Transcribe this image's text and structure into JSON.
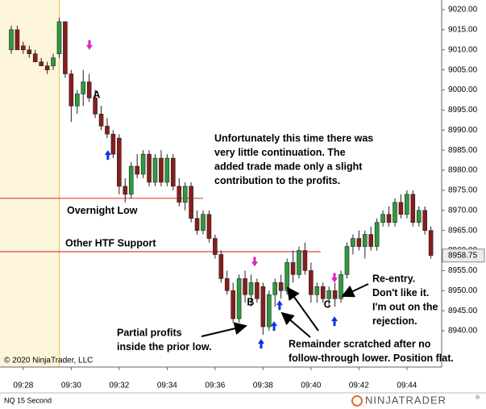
{
  "chart_data": {
    "type": "candlestick",
    "instrument": "NQ 15 Second",
    "copyright": "© 2020 NinjaTrader, LLC",
    "logo": "NINJATRADER",
    "logo_mark": "®",
    "up_color": "#2e9a3e",
    "down_color": "#8b1c1c",
    "premarket_color": "#fdf5dc",
    "premarket_until": 569.5,
    "x": [
      567.5,
      567.75,
      568,
      568.25,
      568.5,
      568.75,
      569,
      569.25,
      569.5,
      569.75,
      570,
      570.25,
      570.5,
      570.75,
      571,
      571.25,
      571.5,
      571.75,
      572,
      572.25,
      572.5,
      572.75,
      573,
      573.25,
      573.5,
      573.75,
      574,
      574.25,
      574.5,
      574.75,
      575,
      575.25,
      575.5,
      575.75,
      576,
      576.25,
      576.5,
      576.75,
      577,
      577.25,
      577.5,
      577.75,
      578,
      578.25,
      578.5,
      578.75,
      579,
      579.25,
      579.5,
      579.75,
      580,
      580.25,
      580.5,
      580.75,
      581,
      581.25,
      581.5,
      581.75,
      582,
      582.25,
      582.5,
      582.75,
      583,
      583.25,
      583.5,
      583.75,
      584,
      584.25,
      584.5,
      584.75,
      585
    ],
    "open": [
      9010,
      9015,
      9011,
      9010,
      9009,
      9007,
      9006,
      9006,
      9009,
      9017,
      9004,
      8996,
      8999,
      9002,
      8998,
      8994,
      8991,
      8989,
      8988,
      8976,
      8974,
      8981,
      8979,
      8984,
      8977,
      8983,
      8977,
      8983,
      8976,
      8972,
      8976,
      8968,
      8965,
      8969,
      8963,
      8959,
      8953,
      8950,
      8943,
      8953,
      8949,
      8952,
      8951,
      8941,
      8949,
      8952,
      8950,
      8957,
      8954,
      8960,
      8955,
      8949,
      8951,
      8948,
      8950,
      8948,
      8954,
      8961,
      8963,
      8961,
      8964,
      8961,
      8967,
      8969,
      8967,
      8972,
      8969,
      8974,
      8967,
      8970,
      8965
    ],
    "high": [
      9016,
      9016,
      9012,
      9011,
      9010,
      9008,
      9007,
      9009,
      9018,
      9017,
      9005,
      9000,
      9005,
      9004,
      9000,
      8996,
      8993,
      8990,
      8989,
      8978,
      8982,
      8984,
      8985,
      8985,
      8984,
      8985,
      8984,
      8984,
      8978,
      8977,
      8977,
      8970,
      8970,
      8970,
      8964,
      8960,
      8955,
      8952,
      8954,
      8955,
      8954,
      8953,
      8952,
      8950,
      8953,
      8954,
      8958,
      8960,
      8961,
      8962,
      8957,
      8952,
      8952,
      8951,
      8952,
      8955,
      8962,
      8964,
      8965,
      8965,
      8966,
      8968,
      8970,
      8971,
      8973,
      8974,
      8975,
      8975,
      8971,
      8971,
      8966
    ],
    "low": [
      9009,
      9010,
      9009,
      9008,
      9007,
      9006,
      9004,
      9005,
      9008,
      9003,
      8992,
      8994,
      8996,
      8997,
      8993,
      8990,
      8988,
      8983,
      8974,
      8972,
      8973,
      8978,
      8978,
      8976,
      8976,
      8976,
      8976,
      8975,
      8971,
      8970,
      8967,
      8964,
      8964,
      8962,
      8958,
      8952,
      8949,
      8942,
      8942,
      8947,
      8946,
      8947,
      8939,
      8940,
      8946,
      8948,
      8949,
      8952,
      8953,
      8954,
      8947,
      8947,
      8947,
      8946,
      8946,
      8947,
      8953,
      8959,
      8960,
      8958,
      8960,
      8960,
      8966,
      8966,
      8966,
      8968,
      8968,
      8966,
      8966,
      8964,
      8958
    ],
    "close": [
      9015,
      9010,
      9010,
      9009,
      9007,
      9006,
      9005,
      9008,
      9017,
      9004,
      8996,
      8999,
      9002,
      8998,
      8994,
      8991,
      8989,
      8984,
      8976,
      8974,
      8981,
      8979,
      8984,
      8977,
      8983,
      8977,
      8983,
      8976,
      8972,
      8976,
      8968,
      8965,
      8969,
      8963,
      8959,
      8953,
      8950,
      8943,
      8953,
      8949,
      8952,
      8948,
      8941,
      8949,
      8952,
      8950,
      8957,
      8954,
      8960,
      8955,
      8949,
      8951,
      8948,
      8950,
      8948,
      8954,
      8961,
      8963,
      8961,
      8964,
      8961,
      8967,
      8969,
      8967,
      8972,
      8969,
      8974,
      8967,
      8970,
      8965,
      8958.75
    ],
    "xlim": [
      567.03,
      585.45
    ],
    "ylim": [
      8930.96,
      9022.41
    ],
    "xticks": [
      {
        "value": 568,
        "label": "09:28"
      },
      {
        "value": 570,
        "label": "09:30"
      },
      {
        "value": 572,
        "label": "09:32"
      },
      {
        "value": 574,
        "label": "09:34"
      },
      {
        "value": 576,
        "label": "09:36"
      },
      {
        "value": 578,
        "label": "09:38"
      },
      {
        "value": 580,
        "label": "09:40"
      },
      {
        "value": 582,
        "label": "09:42"
      },
      {
        "value": 584,
        "label": "09:44"
      }
    ],
    "yticks": [
      {
        "value": 9020,
        "label": "9020.00"
      },
      {
        "value": 9015,
        "label": "9015.00"
      },
      {
        "value": 9010,
        "label": "9010.00"
      },
      {
        "value": 9005,
        "label": "9005.00"
      },
      {
        "value": 9000,
        "label": "9000.00"
      },
      {
        "value": 8995,
        "label": "8995.00"
      },
      {
        "value": 8990,
        "label": "8990.00"
      },
      {
        "value": 8985,
        "label": "8985.00"
      },
      {
        "value": 8980,
        "label": "8980.00"
      },
      {
        "value": 8975,
        "label": "8975.00"
      },
      {
        "value": 8970,
        "label": "8970.00"
      },
      {
        "value": 8965,
        "label": "8965.00"
      },
      {
        "value": 8960,
        "label": "8960.00"
      },
      {
        "value": 8955,
        "label": "8955.00"
      },
      {
        "value": 8950,
        "label": "8950.00"
      },
      {
        "value": 8945,
        "label": "8945.00"
      },
      {
        "value": 8940,
        "label": "8940.00"
      }
    ],
    "hlines": [
      {
        "value": 8973,
        "label": "Overnight Low",
        "color": "#e04040",
        "x_end": 575.5
      },
      {
        "value": 8959.7,
        "label": "Other HTF Support",
        "color": "#e04040",
        "x_end": 580.4
      }
    ],
    "markers": [
      {
        "x": 570.76,
        "y": 9010,
        "shape": "down",
        "color": "#e020c0"
      },
      {
        "x": 577.65,
        "y": 8956,
        "shape": "down",
        "color": "#e020c0"
      },
      {
        "x": 580.98,
        "y": 8952,
        "shape": "down",
        "color": "#e020c0"
      },
      {
        "x": 571.53,
        "y": 8985,
        "shape": "up",
        "color": "#1030e0"
      },
      {
        "x": 577.92,
        "y": 8938,
        "shape": "up",
        "color": "#1030e0"
      },
      {
        "x": 578.46,
        "y": 8942.4,
        "shape": "up",
        "color": "#1030e0"
      },
      {
        "x": 578.69,
        "y": 8947.6,
        "shape": "up",
        "color": "#1030e0"
      },
      {
        "x": 580.98,
        "y": 8943.6,
        "shape": "up",
        "color": "#1030e0"
      }
    ],
    "point_labels": [
      {
        "text": "A",
        "x": 571.06,
        "y": 8998.7
      },
      {
        "text": "B",
        "x": 577.48,
        "y": 8947
      },
      {
        "text": "C",
        "x": 580.68,
        "y": 8946.4
      }
    ],
    "annotations": [
      {
        "lines": [
          "Unfortunately this time there was",
          "very little continuation. The",
          "added trade made only a slight",
          "contribution to the profits."
        ]
      },
      {
        "lines": [
          "Partial profits",
          "inside the prior low."
        ]
      },
      {
        "lines": [
          "Remainder scratched after no",
          "follow-through lower. Position flat."
        ]
      },
      {
        "lines": [
          "Re-entry.",
          "Don't like it.",
          "I'm out on the",
          "rejection."
        ]
      }
    ]
  }
}
